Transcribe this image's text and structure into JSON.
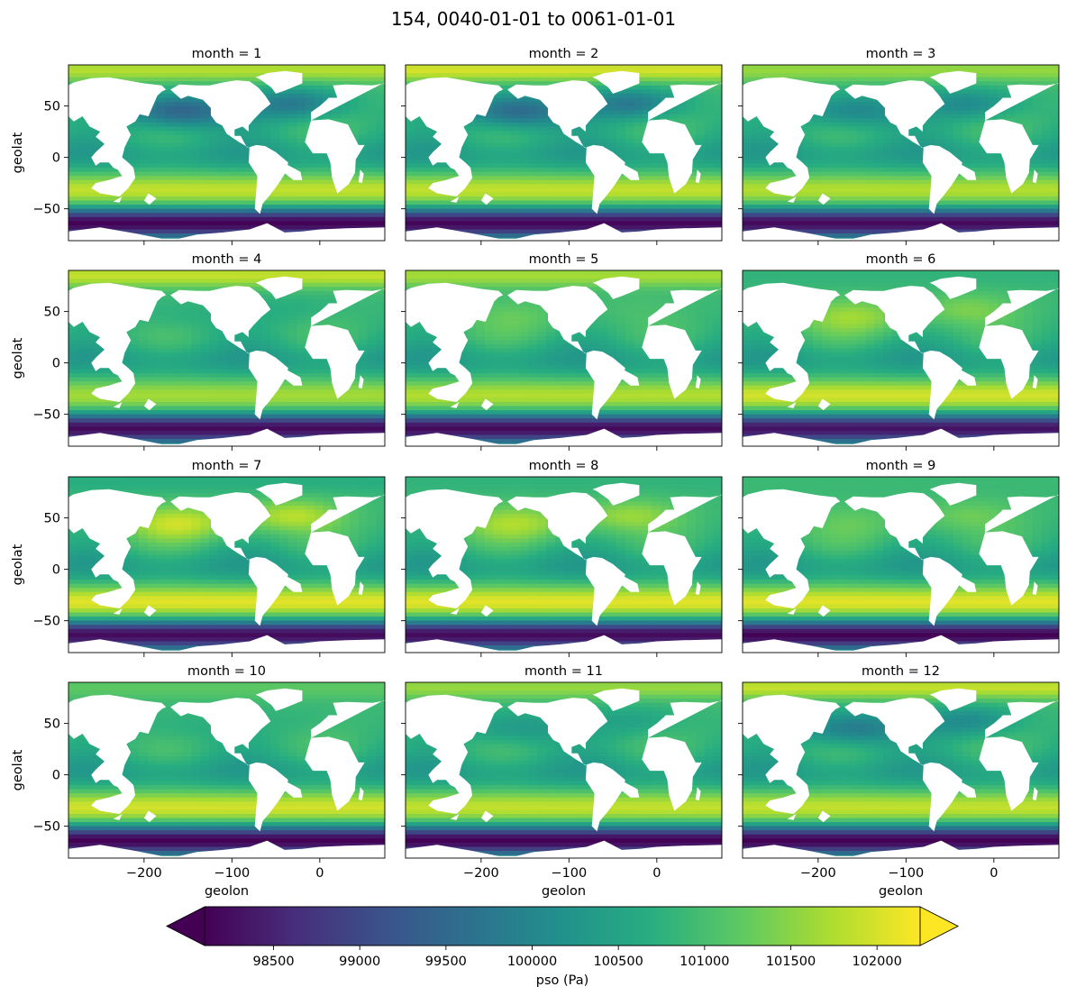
{
  "chart_data": {
    "type": "heatmap",
    "title": "154, 0040-01-01 to 0061-01-01",
    "variable": "pso",
    "xlabel": "geolon",
    "ylabel": "geolat",
    "xlim": [
      -286,
      74
    ],
    "ylim": [
      -81,
      90
    ],
    "xticks": [
      -200,
      -100,
      0
    ],
    "xtick_labels": [
      "−200",
      "−100",
      "0"
    ],
    "yticks": [
      50,
      0,
      -50
    ],
    "ytick_labels": [
      "50",
      "0",
      "−50"
    ],
    "colorbar": {
      "label": "pso (Pa)",
      "vmin": 98100,
      "vmax": 102250,
      "extend": "both",
      "colormap": "viridis",
      "ticks": [
        98500,
        99000,
        99500,
        100000,
        100500,
        101000,
        101500,
        102000
      ],
      "tick_labels": [
        "98500",
        "99000",
        "99500",
        "100000",
        "100500",
        "101000",
        "101500",
        "102000"
      ]
    },
    "panels": [
      {
        "title": "month = 1",
        "month": 1,
        "summary_pa": {
          "antarctic_trough": 98100,
          "southern_subtropical_high": 101900,
          "north_pacific_low": 99400,
          "north_atlantic_low": 99800,
          "arctic": 101800
        }
      },
      {
        "title": "month = 2",
        "month": 2,
        "summary_pa": {
          "antarctic_trough": 98150,
          "southern_subtropical_high": 101900,
          "north_pacific_low": 99500,
          "north_atlantic_low": 99800,
          "arctic": 102000
        }
      },
      {
        "title": "month = 3",
        "month": 3,
        "summary_pa": {
          "antarctic_trough": 98200,
          "southern_subtropical_high": 101800,
          "north_pacific_low": 100000,
          "north_atlantic_low": 100100,
          "arctic": 101600
        }
      },
      {
        "title": "month = 4",
        "month": 4,
        "summary_pa": {
          "antarctic_trough": 98200,
          "southern_subtropical_high": 101700,
          "north_pacific_low": 100700,
          "north_atlantic_low": 100700,
          "arctic": 101900
        }
      },
      {
        "title": "month = 5",
        "month": 5,
        "summary_pa": {
          "antarctic_trough": 98200,
          "southern_subtropical_high": 101800,
          "north_pacific_low": 101200,
          "north_atlantic_low": 101000,
          "arctic": 101700
        }
      },
      {
        "title": "month = 6",
        "month": 6,
        "summary_pa": {
          "antarctic_trough": 98300,
          "southern_subtropical_high": 102000,
          "north_pacific_low": 101600,
          "north_atlantic_low": 101400,
          "arctic": 100800
        }
      },
      {
        "title": "month = 7",
        "month": 7,
        "summary_pa": {
          "antarctic_trough": 98200,
          "southern_subtropical_high": 102100,
          "north_pacific_low": 101900,
          "north_atlantic_low": 101800,
          "arctic": 100700
        }
      },
      {
        "title": "month = 8",
        "month": 8,
        "summary_pa": {
          "antarctic_trough": 98200,
          "southern_subtropical_high": 102100,
          "north_pacific_low": 101700,
          "north_atlantic_low": 101600,
          "arctic": 100800
        }
      },
      {
        "title": "month = 9",
        "month": 9,
        "summary_pa": {
          "antarctic_trough": 98100,
          "southern_subtropical_high": 102100,
          "north_pacific_low": 101200,
          "north_atlantic_low": 101300,
          "arctic": 100900
        }
      },
      {
        "title": "month = 10",
        "month": 10,
        "summary_pa": {
          "antarctic_trough": 98100,
          "southern_subtropical_high": 102000,
          "north_pacific_low": 100700,
          "north_atlantic_low": 100800,
          "arctic": 101200
        }
      },
      {
        "title": "month = 11",
        "month": 11,
        "summary_pa": {
          "antarctic_trough": 98100,
          "southern_subtropical_high": 101900,
          "north_pacific_low": 100300,
          "north_atlantic_low": 100500,
          "arctic": 101600
        }
      },
      {
        "title": "month = 12",
        "month": 12,
        "summary_pa": {
          "antarctic_trough": 98100,
          "southern_subtropical_high": 101900,
          "north_pacific_low": 99800,
          "north_atlantic_low": 100100,
          "arctic": 101900
        }
      }
    ]
  }
}
